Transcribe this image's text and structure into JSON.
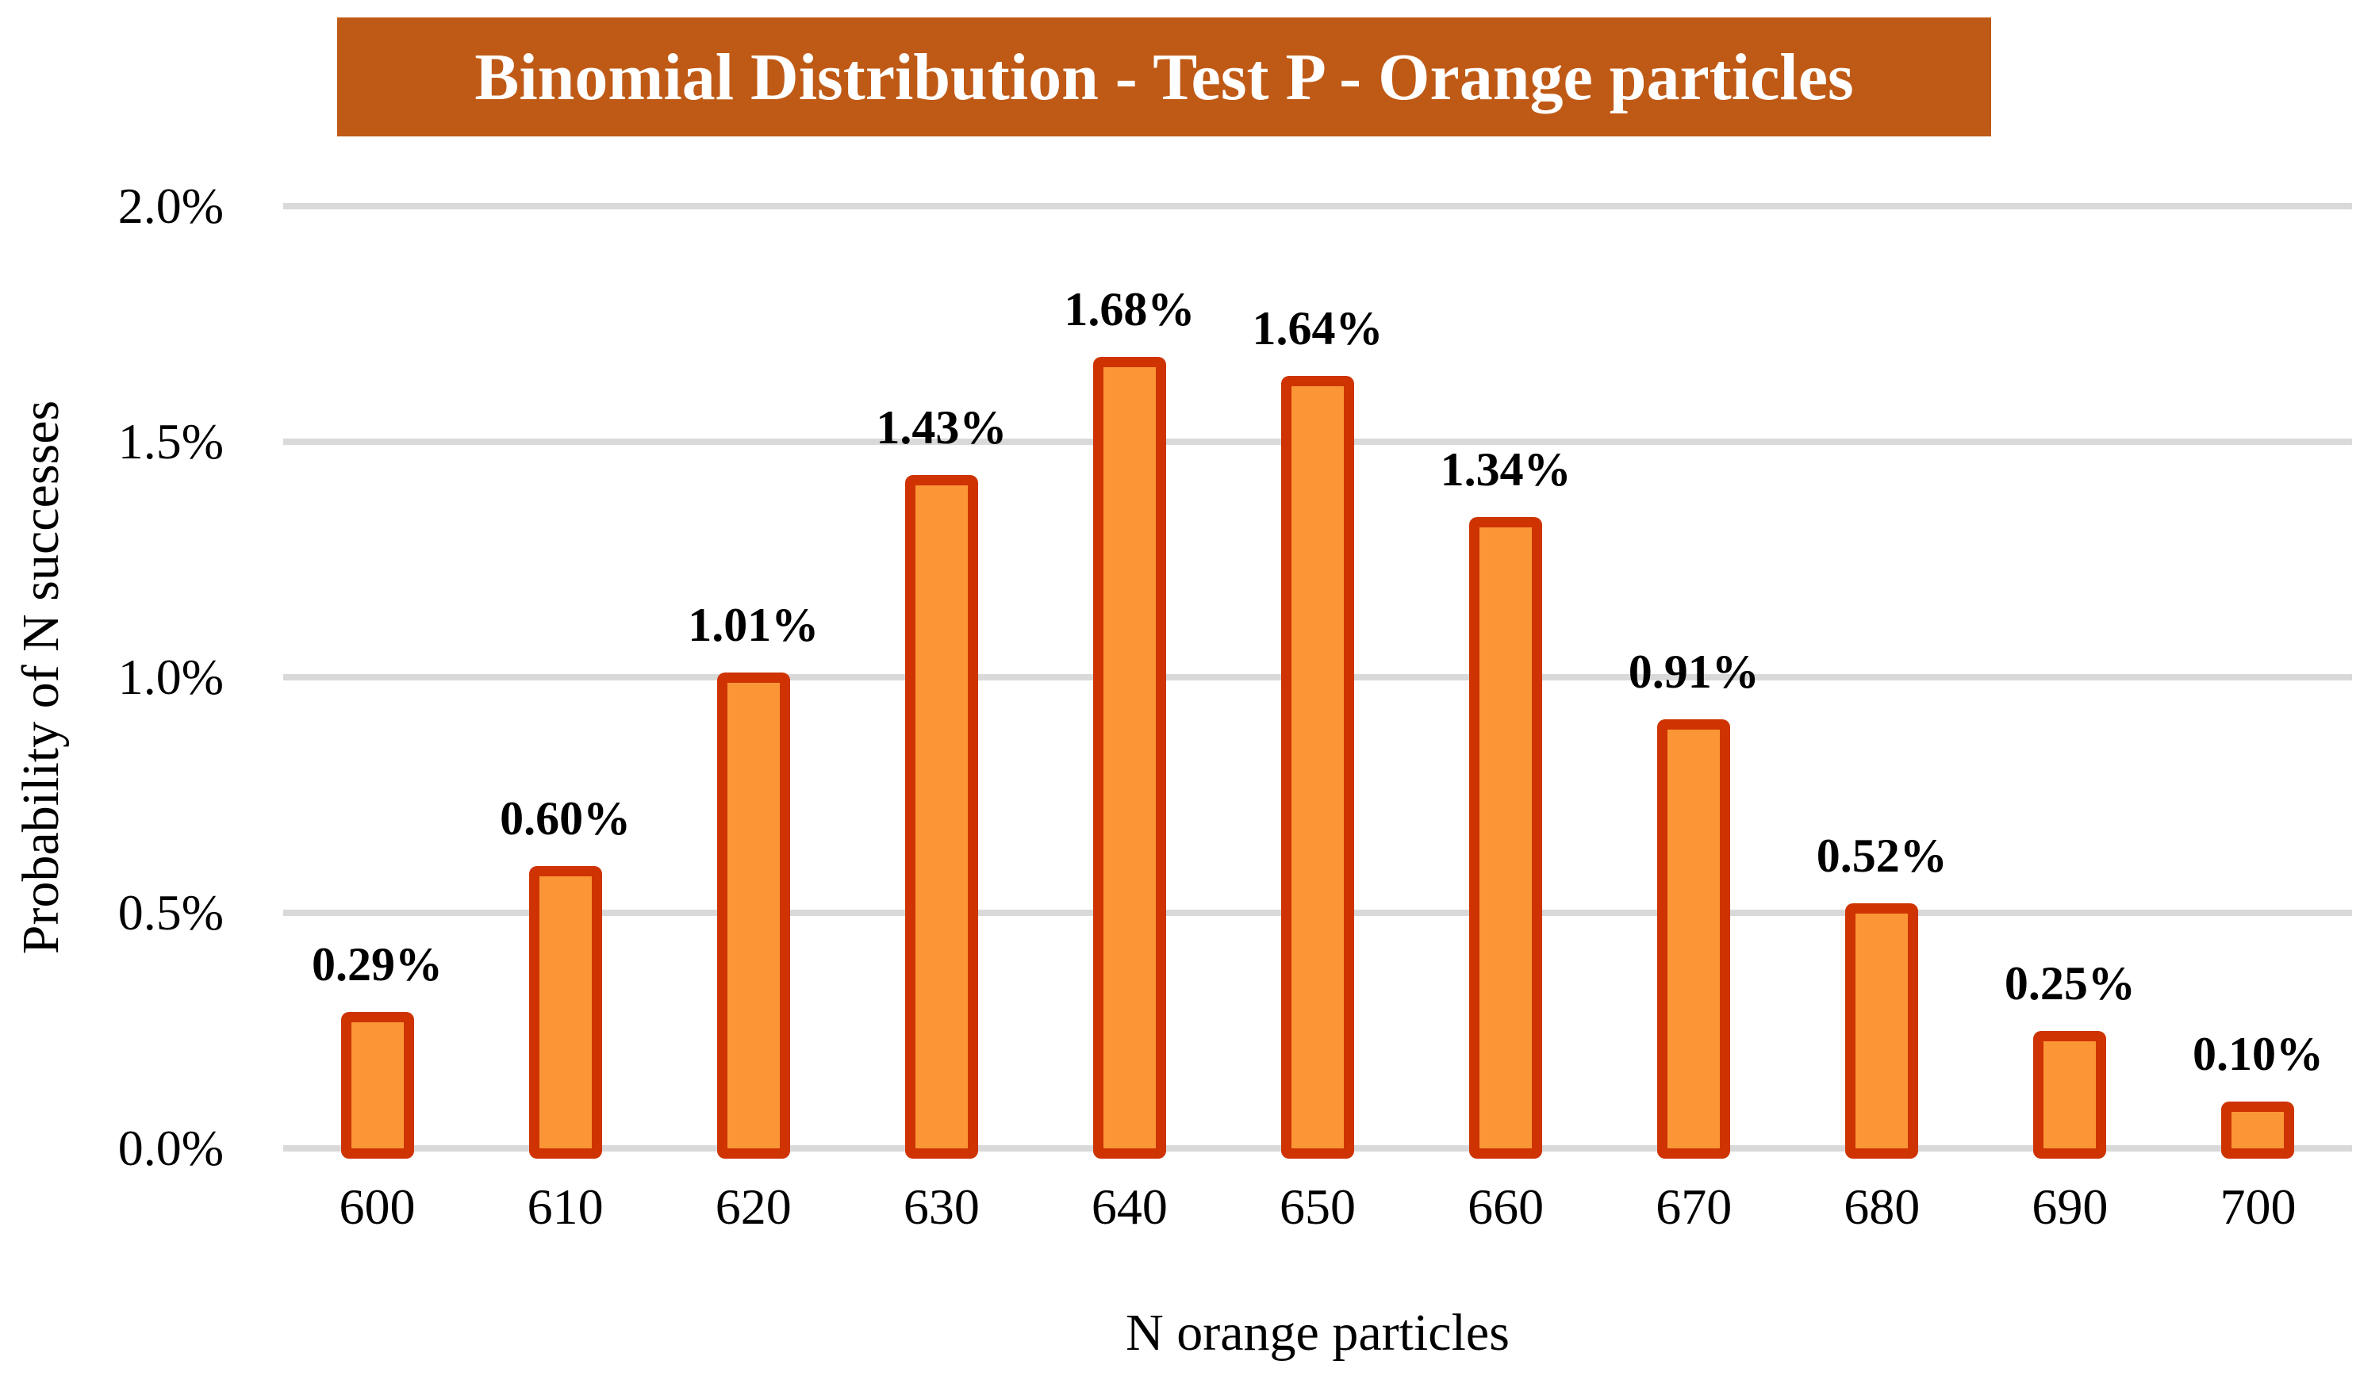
{
  "title": "Binomial Distribution - Test P - Orange particles",
  "chart_data": {
    "type": "bar",
    "title": "Binomial Distribution - Test P - Orange particles",
    "categories": [
      "600",
      "610",
      "620",
      "630",
      "640",
      "650",
      "660",
      "670",
      "680",
      "690",
      "700"
    ],
    "values": [
      0.29,
      0.6,
      1.01,
      1.43,
      1.68,
      1.64,
      1.34,
      0.91,
      0.52,
      0.25,
      0.1
    ],
    "data_labels": [
      "0.29%",
      "0.60%",
      "1.01%",
      "1.43%",
      "1.68%",
      "1.64%",
      "1.34%",
      "0.91%",
      "0.52%",
      "0.25%",
      "0.10%"
    ],
    "xlabel": "N orange particles",
    "ylabel": "Probability of N successes",
    "ylim": [
      0,
      2.0
    ],
    "y_ticks": [
      "2.0%",
      "1.5%",
      "1.0%",
      "0.5%",
      "0.0%"
    ],
    "grid": true,
    "legend_position": "none"
  },
  "colors": {
    "banner_bg": "#BF5A16",
    "title_text": "#FFFFFF",
    "bar_fill": "#FB9637",
    "bar_border": "#CE3301",
    "gridline": "#D9D9D9",
    "label_text": "#000000"
  }
}
